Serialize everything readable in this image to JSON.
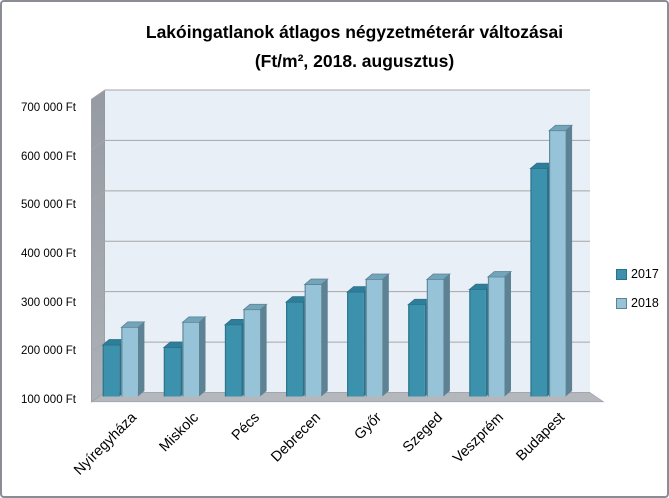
{
  "chart_data": {
    "type": "bar",
    "style": "3d-clustered-column",
    "title_line1": "Lakóingatlanok átlagos négyzetméterár változásai",
    "title_line2": "(Ft/m², 2018. augusztus)",
    "unit": "Ft/m²",
    "categories": [
      "Nyíregyháza",
      "Miskolc",
      "Pécs",
      "Debrecen",
      "Győr",
      "Szeged",
      "Veszprém",
      "Budapest"
    ],
    "series": [
      {
        "name": "2017",
        "values": [
          205000,
          200000,
          245000,
          290000,
          310000,
          285000,
          315000,
          555000
        ],
        "color_front": "#3C92AC",
        "color_top": "#2F7E99",
        "color_side": "#2B7189"
      },
      {
        "name": "2018",
        "values": [
          240000,
          250000,
          275000,
          325000,
          335000,
          335000,
          340000,
          630000
        ],
        "color_front": "#97C3D8",
        "color_top": "#72A4BA",
        "color_side": "#5C8294"
      }
    ],
    "xlabel": "",
    "ylabel": "",
    "y_axis": {
      "min": 100000,
      "max": 700000,
      "tick_step": 100000,
      "tick_labels": [
        "100 000 Ft",
        "200 000 Ft",
        "300 000 Ft",
        "400 000 Ft",
        "500 000 Ft",
        "600 000 Ft",
        "700 000 Ft"
      ]
    },
    "legend": {
      "position": "right",
      "entries": [
        "2017",
        "2018"
      ]
    },
    "grid": true
  },
  "colors": {
    "back_wall": "#E9EFF7",
    "side_wall_top": "#969BA3",
    "side_wall_bottom": "#ACB0B7",
    "floor": "#B4B8BD",
    "gridline": "#A6A6A6",
    "frame_border": "#8A8E94"
  }
}
